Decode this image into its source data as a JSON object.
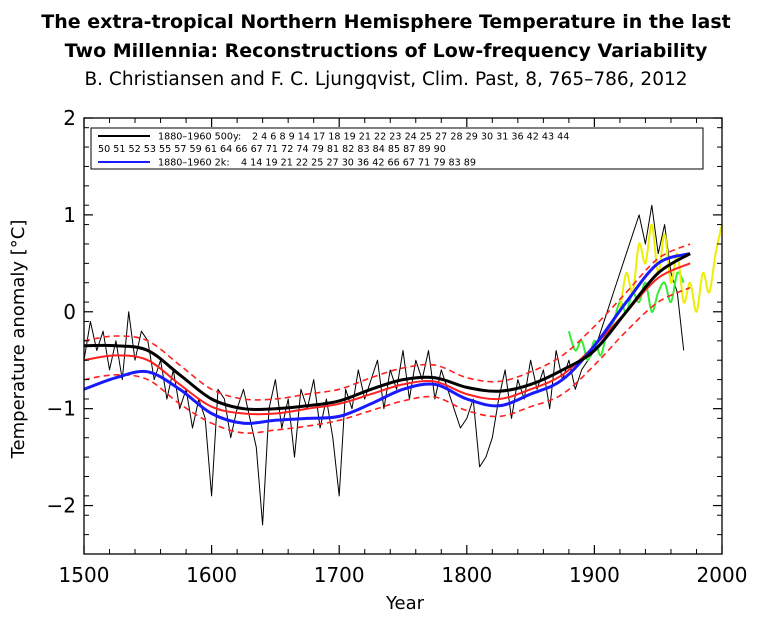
{
  "title": {
    "line1": "The extra-tropical Northern Hemisphere Temperature in the last",
    "line2": "Two Millennia: Reconstructions of Low-frequency Variability",
    "line3": "B. Christiansen and F. C. Ljungqvist, Clim. Past, 8, 765–786, 2012"
  },
  "chart_data": {
    "type": "line",
    "xlabel": "Year",
    "ylabel": "Temperature anomaly [°C]",
    "xlim": [
      1500,
      2000
    ],
    "ylim": [
      -2.5,
      2
    ],
    "xticks": [
      "1500",
      "1600",
      "1700",
      "1800",
      "1900",
      "2000"
    ],
    "yticks": [
      "2",
      "1",
      "0",
      "−1",
      "−2"
    ],
    "ytick_values": [
      2,
      1,
      0,
      -1,
      -2
    ],
    "xtick_values": [
      1500,
      1600,
      1700,
      1800,
      1900,
      2000
    ],
    "legend": [
      {
        "label": "1880–1960 500y:",
        "color": "#000000",
        "text": "2 4 6 8 9 14 17 18 19 21 22 23 24 25 27 28 29 30 31 36 42 43 44"
      },
      {
        "label": "",
        "color": "",
        "text": "50 51 52 53 55 57 59 61 64 66 67 71 72 74 79 81 82 83 84 85 87 89 90"
      },
      {
        "label": "1880–1960   2k:",
        "color": "#1a1aff",
        "text": "4 14 19 21 22 25 27 30 36 42 66 67 71 79 83 89"
      }
    ],
    "series": [
      {
        "name": "500y reconstruction (annual)",
        "color": "#000000",
        "x": [
          1500,
          1505,
          1510,
          1515,
          1520,
          1525,
          1530,
          1535,
          1540,
          1545,
          1550,
          1555,
          1560,
          1565,
          1570,
          1575,
          1580,
          1585,
          1590,
          1595,
          1600,
          1605,
          1610,
          1615,
          1620,
          1625,
          1630,
          1635,
          1640,
          1645,
          1650,
          1655,
          1660,
          1665,
          1670,
          1675,
          1680,
          1685,
          1690,
          1695,
          1700,
          1705,
          1710,
          1715,
          1720,
          1725,
          1730,
          1735,
          1740,
          1745,
          1750,
          1755,
          1760,
          1765,
          1770,
          1775,
          1780,
          1785,
          1790,
          1795,
          1800,
          1805,
          1810,
          1815,
          1820,
          1825,
          1830,
          1835,
          1840,
          1845,
          1850,
          1855,
          1860,
          1865,
          1870,
          1875,
          1880,
          1885,
          1890,
          1895,
          1900,
          1905,
          1910,
          1915,
          1920,
          1925,
          1930,
          1935,
          1940,
          1945,
          1950,
          1955,
          1960,
          1965,
          1970
        ],
        "y": [
          -0.5,
          -0.1,
          -0.4,
          -0.2,
          -0.6,
          -0.3,
          -0.7,
          0.0,
          -0.5,
          -0.2,
          -0.3,
          -0.7,
          -0.5,
          -0.9,
          -0.6,
          -1.0,
          -0.8,
          -1.2,
          -0.9,
          -1.1,
          -1.9,
          -0.8,
          -0.9,
          -1.3,
          -1.0,
          -0.8,
          -1.1,
          -1.4,
          -2.2,
          -1.0,
          -0.7,
          -1.2,
          -0.9,
          -1.5,
          -0.8,
          -1.0,
          -0.7,
          -1.2,
          -0.9,
          -1.3,
          -1.9,
          -0.8,
          -1.0,
          -0.6,
          -0.9,
          -0.7,
          -0.5,
          -1.0,
          -0.6,
          -0.8,
          -0.4,
          -0.9,
          -0.5,
          -0.7,
          -0.4,
          -0.9,
          -0.6,
          -0.8,
          -1.0,
          -1.2,
          -1.1,
          -0.9,
          -1.6,
          -1.5,
          -1.3,
          -0.9,
          -0.6,
          -1.1,
          -0.7,
          -0.9,
          -0.5,
          -0.8,
          -0.6,
          -1.0,
          -0.4,
          -0.7,
          -0.5,
          -0.8,
          -0.6,
          -0.5,
          -0.4,
          -0.2,
          0.0,
          0.2,
          0.4,
          0.6,
          0.8,
          1.0,
          0.7,
          1.1,
          0.6,
          0.9,
          0.4,
          0.2,
          -0.4
        ]
      },
      {
        "name": "500y smoothed",
        "color": "#000000",
        "x": [
          1500,
          1525,
          1550,
          1575,
          1600,
          1625,
          1650,
          1675,
          1700,
          1725,
          1750,
          1775,
          1800,
          1825,
          1850,
          1875,
          1900,
          1925,
          1950,
          1975
        ],
        "y": [
          -0.35,
          -0.35,
          -0.4,
          -0.65,
          -0.9,
          -1.0,
          -1.0,
          -0.97,
          -0.92,
          -0.8,
          -0.7,
          -0.68,
          -0.78,
          -0.82,
          -0.75,
          -0.6,
          -0.4,
          0.0,
          0.4,
          0.6
        ]
      },
      {
        "name": "2k reconstruction smoothed",
        "color": "#1a1aff",
        "x": [
          1500,
          1525,
          1550,
          1575,
          1600,
          1625,
          1650,
          1675,
          1700,
          1725,
          1750,
          1775,
          1800,
          1825,
          1850,
          1875,
          1900,
          1925,
          1950,
          1975
        ],
        "y": [
          -0.8,
          -0.68,
          -0.62,
          -0.8,
          -1.05,
          -1.15,
          -1.12,
          -1.1,
          -1.08,
          -0.95,
          -0.8,
          -0.75,
          -0.9,
          -0.97,
          -0.85,
          -0.7,
          -0.35,
          0.1,
          0.5,
          0.6
        ]
      },
      {
        "name": "Confidence centre (red)",
        "color": "#ff2020",
        "x": [
          1500,
          1525,
          1550,
          1575,
          1600,
          1625,
          1650,
          1675,
          1700,
          1725,
          1750,
          1775,
          1800,
          1825,
          1850,
          1875,
          1900,
          1925,
          1950,
          1975
        ],
        "y": [
          -0.5,
          -0.45,
          -0.5,
          -0.75,
          -0.98,
          -1.05,
          -1.05,
          -1.0,
          -0.95,
          -0.85,
          -0.75,
          -0.72,
          -0.85,
          -0.9,
          -0.8,
          -0.65,
          -0.35,
          0.0,
          0.35,
          0.5
        ]
      },
      {
        "name": "Confidence upper (red dashed)",
        "color": "#ff2020",
        "x": [
          1500,
          1525,
          1550,
          1575,
          1600,
          1625,
          1650,
          1675,
          1700,
          1725,
          1750,
          1775,
          1800,
          1825,
          1850,
          1875,
          1900,
          1925,
          1950,
          1975
        ],
        "y": [
          -0.3,
          -0.25,
          -0.3,
          -0.55,
          -0.8,
          -0.9,
          -0.9,
          -0.85,
          -0.8,
          -0.68,
          -0.58,
          -0.55,
          -0.68,
          -0.72,
          -0.62,
          -0.45,
          -0.15,
          0.2,
          0.55,
          0.7
        ]
      },
      {
        "name": "Confidence lower (red dashed)",
        "color": "#ff2020",
        "x": [
          1500,
          1525,
          1550,
          1575,
          1600,
          1625,
          1650,
          1675,
          1700,
          1725,
          1750,
          1775,
          1800,
          1825,
          1850,
          1875,
          1900,
          1925,
          1950,
          1975
        ],
        "y": [
          -0.7,
          -0.65,
          -0.7,
          -0.95,
          -1.15,
          -1.25,
          -1.22,
          -1.18,
          -1.12,
          -1.02,
          -0.92,
          -0.88,
          -1.02,
          -1.08,
          -0.98,
          -0.85,
          -0.55,
          -0.2,
          0.1,
          0.25
        ]
      },
      {
        "name": "Instrumental (green)",
        "color": "#33ee33",
        "x": [
          1880,
          1885,
          1890,
          1895,
          1900,
          1905,
          1910,
          1915,
          1920,
          1925,
          1930,
          1935,
          1940,
          1945,
          1950,
          1955,
          1960,
          1965,
          1970
        ],
        "y": [
          -0.2,
          -0.4,
          -0.3,
          -0.5,
          -0.3,
          -0.45,
          -0.2,
          -0.1,
          0.1,
          0.0,
          0.2,
          0.1,
          0.3,
          0.0,
          0.2,
          0.3,
          0.1,
          0.4,
          0.3
        ]
      },
      {
        "name": "Instrumental (yellow)",
        "color": "#eeee00",
        "x": [
          1920,
          1925,
          1930,
          1935,
          1940,
          1945,
          1950,
          1955,
          1960,
          1965,
          1970,
          1975,
          1980,
          1985,
          1990,
          1995,
          2000
        ],
        "y": [
          0.0,
          0.4,
          0.2,
          0.7,
          0.5,
          0.9,
          0.4,
          0.8,
          0.3,
          0.6,
          0.1,
          0.3,
          0.0,
          0.4,
          0.2,
          0.6,
          0.9
        ]
      }
    ]
  }
}
